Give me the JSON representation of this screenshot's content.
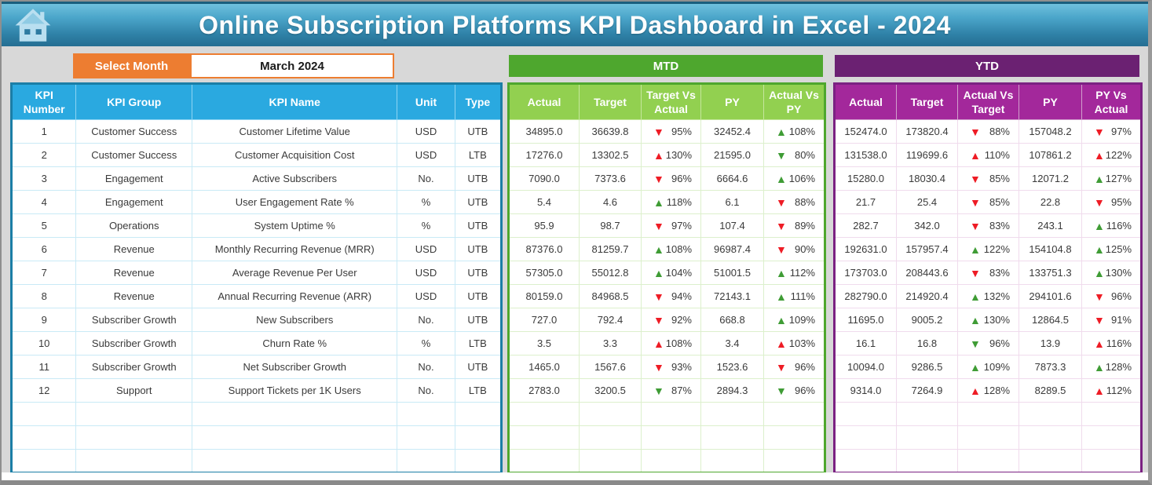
{
  "title_bar": {
    "title": "Online Subscription Platforms KPI Dashboard in Excel - 2024",
    "home_icon": "home-icon"
  },
  "month_selector": {
    "label": "Select Month",
    "value": "March 2024"
  },
  "colors": {
    "bg_grey": "#D8D8D8",
    "accent_blue": "#2AA9E0",
    "accent_orange": "#ED7D31",
    "accent_green_dark": "#4EA72E",
    "accent_green_light": "#92D050",
    "accent_purple_dark": "#6B2172",
    "accent_magenta": "#A3289B",
    "up_green": "#3F9C35",
    "down_red": "#EE1C25"
  },
  "kpi_table": {
    "headers": [
      "KPI Number",
      "KPI Group",
      "KPI Name",
      "Unit",
      "Type"
    ],
    "empty_rows": 3,
    "rows": [
      {
        "number": "1",
        "group": "Customer Success",
        "name": "Customer Lifetime Value",
        "unit": "USD",
        "type": "UTB"
      },
      {
        "number": "2",
        "group": "Customer Success",
        "name": "Customer Acquisition Cost",
        "unit": "USD",
        "type": "LTB"
      },
      {
        "number": "3",
        "group": "Engagement",
        "name": "Active Subscribers",
        "unit": "No.",
        "type": "UTB"
      },
      {
        "number": "4",
        "group": "Engagement",
        "name": "User Engagement Rate %",
        "unit": "%",
        "type": "UTB"
      },
      {
        "number": "5",
        "group": "Operations",
        "name": "System Uptime %",
        "unit": "%",
        "type": "UTB"
      },
      {
        "number": "6",
        "group": "Revenue",
        "name": "Monthly Recurring Revenue (MRR)",
        "unit": "USD",
        "type": "UTB"
      },
      {
        "number": "7",
        "group": "Revenue",
        "name": "Average Revenue Per User",
        "unit": "USD",
        "type": "UTB"
      },
      {
        "number": "8",
        "group": "Revenue",
        "name": "Annual Recurring Revenue (ARR)",
        "unit": "USD",
        "type": "UTB"
      },
      {
        "number": "9",
        "group": "Subscriber Growth",
        "name": "New Subscribers",
        "unit": "No.",
        "type": "UTB"
      },
      {
        "number": "10",
        "group": "Subscriber Growth",
        "name": "Churn Rate %",
        "unit": "%",
        "type": "LTB"
      },
      {
        "number": "11",
        "group": "Subscriber Growth",
        "name": "Net Subscriber Growth",
        "unit": "No.",
        "type": "UTB"
      },
      {
        "number": "12",
        "group": "Support",
        "name": "Support Tickets per 1K Users",
        "unit": "No.",
        "type": "LTB"
      }
    ]
  },
  "mtd": {
    "title": "MTD",
    "headers": [
      "Actual",
      "Target",
      "Target Vs Actual",
      "PY",
      "Actual Vs PY"
    ],
    "empty_rows": 3,
    "rows": [
      {
        "actual": "34895.0",
        "target": "36639.8",
        "target_vs_actual": {
          "arrow": "down",
          "color": "red",
          "value": "95%"
        },
        "py": "32452.4",
        "actual_vs_py": {
          "arrow": "up",
          "color": "green",
          "value": "108%"
        }
      },
      {
        "actual": "17276.0",
        "target": "13302.5",
        "target_vs_actual": {
          "arrow": "up",
          "color": "red",
          "value": "130%"
        },
        "py": "21595.0",
        "actual_vs_py": {
          "arrow": "down",
          "color": "green",
          "value": "80%"
        }
      },
      {
        "actual": "7090.0",
        "target": "7373.6",
        "target_vs_actual": {
          "arrow": "down",
          "color": "red",
          "value": "96%"
        },
        "py": "6664.6",
        "actual_vs_py": {
          "arrow": "up",
          "color": "green",
          "value": "106%"
        }
      },
      {
        "actual": "5.4",
        "target": "4.6",
        "target_vs_actual": {
          "arrow": "up",
          "color": "green",
          "value": "118%"
        },
        "py": "6.1",
        "actual_vs_py": {
          "arrow": "down",
          "color": "red",
          "value": "88%"
        }
      },
      {
        "actual": "95.9",
        "target": "98.7",
        "target_vs_actual": {
          "arrow": "down",
          "color": "red",
          "value": "97%"
        },
        "py": "107.4",
        "actual_vs_py": {
          "arrow": "down",
          "color": "red",
          "value": "89%"
        }
      },
      {
        "actual": "87376.0",
        "target": "81259.7",
        "target_vs_actual": {
          "arrow": "up",
          "color": "green",
          "value": "108%"
        },
        "py": "96987.4",
        "actual_vs_py": {
          "arrow": "down",
          "color": "red",
          "value": "90%"
        }
      },
      {
        "actual": "57305.0",
        "target": "55012.8",
        "target_vs_actual": {
          "arrow": "up",
          "color": "green",
          "value": "104%"
        },
        "py": "51001.5",
        "actual_vs_py": {
          "arrow": "up",
          "color": "green",
          "value": "112%"
        }
      },
      {
        "actual": "80159.0",
        "target": "84968.5",
        "target_vs_actual": {
          "arrow": "down",
          "color": "red",
          "value": "94%"
        },
        "py": "72143.1",
        "actual_vs_py": {
          "arrow": "up",
          "color": "green",
          "value": "111%"
        }
      },
      {
        "actual": "727.0",
        "target": "792.4",
        "target_vs_actual": {
          "arrow": "down",
          "color": "red",
          "value": "92%"
        },
        "py": "668.8",
        "actual_vs_py": {
          "arrow": "up",
          "color": "green",
          "value": "109%"
        }
      },
      {
        "actual": "3.5",
        "target": "3.3",
        "target_vs_actual": {
          "arrow": "up",
          "color": "red",
          "value": "108%"
        },
        "py": "3.4",
        "actual_vs_py": {
          "arrow": "up",
          "color": "red",
          "value": "103%"
        }
      },
      {
        "actual": "1465.0",
        "target": "1567.6",
        "target_vs_actual": {
          "arrow": "down",
          "color": "red",
          "value": "93%"
        },
        "py": "1523.6",
        "actual_vs_py": {
          "arrow": "down",
          "color": "red",
          "value": "96%"
        }
      },
      {
        "actual": "2783.0",
        "target": "3200.5",
        "target_vs_actual": {
          "arrow": "down",
          "color": "green",
          "value": "87%"
        },
        "py": "2894.3",
        "actual_vs_py": {
          "arrow": "down",
          "color": "green",
          "value": "96%"
        }
      }
    ]
  },
  "ytd": {
    "title": "YTD",
    "headers": [
      "Actual",
      "Target",
      "Actual Vs Target",
      "PY",
      "PY Vs Actual"
    ],
    "empty_rows": 3,
    "rows": [
      {
        "actual": "152474.0",
        "target": "173820.4",
        "actual_vs_target": {
          "arrow": "down",
          "color": "red",
          "value": "88%"
        },
        "py": "157048.2",
        "py_vs_actual": {
          "arrow": "down",
          "color": "red",
          "value": "97%"
        }
      },
      {
        "actual": "131538.0",
        "target": "119699.6",
        "actual_vs_target": {
          "arrow": "up",
          "color": "red",
          "value": "110%"
        },
        "py": "107861.2",
        "py_vs_actual": {
          "arrow": "up",
          "color": "red",
          "value": "122%"
        }
      },
      {
        "actual": "15280.0",
        "target": "18030.4",
        "actual_vs_target": {
          "arrow": "down",
          "color": "red",
          "value": "85%"
        },
        "py": "12071.2",
        "py_vs_actual": {
          "arrow": "up",
          "color": "green",
          "value": "127%"
        }
      },
      {
        "actual": "21.7",
        "target": "25.4",
        "actual_vs_target": {
          "arrow": "down",
          "color": "red",
          "value": "85%"
        },
        "py": "22.8",
        "py_vs_actual": {
          "arrow": "down",
          "color": "red",
          "value": "95%"
        }
      },
      {
        "actual": "282.7",
        "target": "342.0",
        "actual_vs_target": {
          "arrow": "down",
          "color": "red",
          "value": "83%"
        },
        "py": "243.1",
        "py_vs_actual": {
          "arrow": "up",
          "color": "green",
          "value": "116%"
        }
      },
      {
        "actual": "192631.0",
        "target": "157957.4",
        "actual_vs_target": {
          "arrow": "up",
          "color": "green",
          "value": "122%"
        },
        "py": "154104.8",
        "py_vs_actual": {
          "arrow": "up",
          "color": "green",
          "value": "125%"
        }
      },
      {
        "actual": "173703.0",
        "target": "208443.6",
        "actual_vs_target": {
          "arrow": "down",
          "color": "red",
          "value": "83%"
        },
        "py": "133751.3",
        "py_vs_actual": {
          "arrow": "up",
          "color": "green",
          "value": "130%"
        }
      },
      {
        "actual": "282790.0",
        "target": "214920.4",
        "actual_vs_target": {
          "arrow": "up",
          "color": "green",
          "value": "132%"
        },
        "py": "294101.6",
        "py_vs_actual": {
          "arrow": "down",
          "color": "red",
          "value": "96%"
        }
      },
      {
        "actual": "11695.0",
        "target": "9005.2",
        "actual_vs_target": {
          "arrow": "up",
          "color": "green",
          "value": "130%"
        },
        "py": "12864.5",
        "py_vs_actual": {
          "arrow": "down",
          "color": "red",
          "value": "91%"
        }
      },
      {
        "actual": "16.1",
        "target": "16.8",
        "actual_vs_target": {
          "arrow": "down",
          "color": "green",
          "value": "96%"
        },
        "py": "13.9",
        "py_vs_actual": {
          "arrow": "up",
          "color": "red",
          "value": "116%"
        }
      },
      {
        "actual": "10094.0",
        "target": "9286.5",
        "actual_vs_target": {
          "arrow": "up",
          "color": "green",
          "value": "109%"
        },
        "py": "7873.3",
        "py_vs_actual": {
          "arrow": "up",
          "color": "green",
          "value": "128%"
        }
      },
      {
        "actual": "9314.0",
        "target": "7264.9",
        "actual_vs_target": {
          "arrow": "up",
          "color": "red",
          "value": "128%"
        },
        "py": "8289.5",
        "py_vs_actual": {
          "arrow": "up",
          "color": "red",
          "value": "112%"
        }
      }
    ]
  }
}
